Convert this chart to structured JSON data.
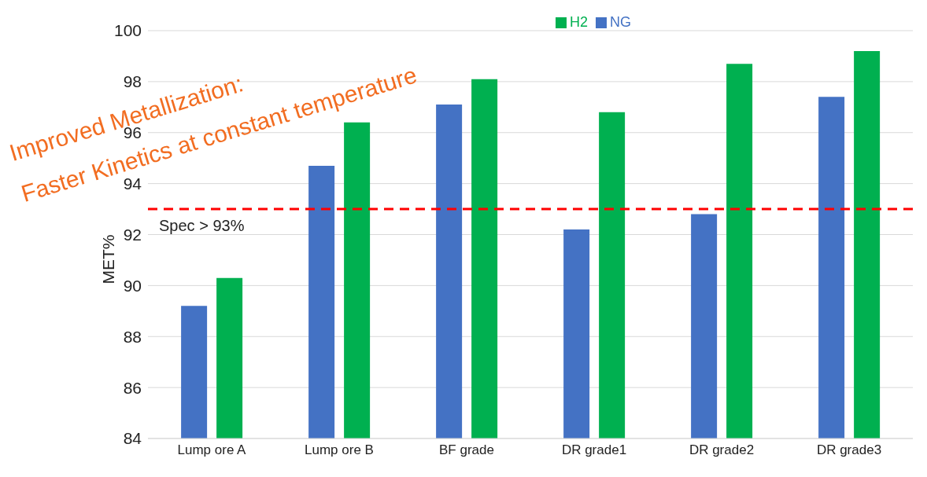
{
  "chart_data": {
    "type": "bar",
    "ylabel": "MET%",
    "categories": [
      "Lump ore A",
      "Lump ore B",
      "BF grade",
      "DR grade1",
      "DR grade2",
      "DR grade3"
    ],
    "series": [
      {
        "name": "NG",
        "color": "#4472c4",
        "values": [
          89.2,
          94.7,
          97.1,
          92.2,
          92.8,
          97.4
        ]
      },
      {
        "name": "H2",
        "color": "#00b050",
        "values": [
          90.3,
          96.4,
          98.1,
          96.8,
          98.7,
          99.2
        ]
      }
    ],
    "ylim": [
      84,
      100
    ],
    "yticks": [
      84,
      86,
      88,
      90,
      92,
      94,
      96,
      98,
      100
    ],
    "grid": "y",
    "legend": "top",
    "ref_lines": [
      {
        "axis": "y",
        "value": 93,
        "label": "Spec > 93%",
        "color": "#ff0000",
        "line_style": "dashed"
      }
    ],
    "annotations": [
      "Improved Metallization:",
      "Faster Kinetics at constant temperature"
    ]
  }
}
